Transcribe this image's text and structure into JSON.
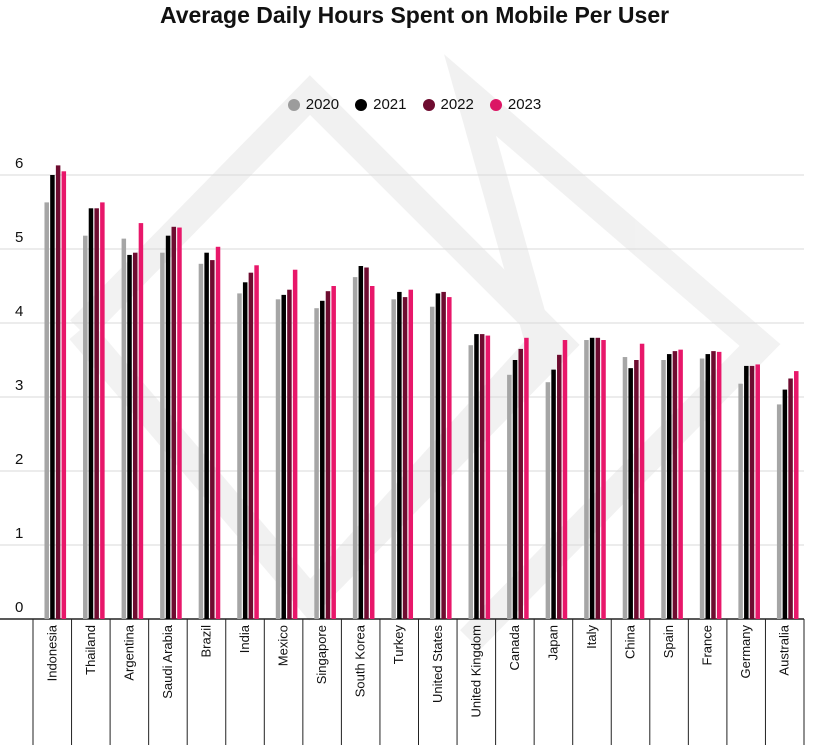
{
  "chart_data": {
    "type": "bar",
    "title": "Average Daily Hours Spent on Mobile Per User",
    "xlabel": "",
    "ylabel": "",
    "ylim": [
      0,
      6
    ],
    "yticks": [
      0,
      1,
      2,
      3,
      4,
      5,
      6
    ],
    "grid": true,
    "legend_position": "top-center",
    "categories": [
      "Indonesia",
      "Thailand",
      "Argentina",
      "Saudi Arabia",
      "Brazil",
      "India",
      "Mexico",
      "Singapore",
      "South Korea",
      "Turkey",
      "United States",
      "United Kingdom",
      "Canada",
      "Japan",
      "Italy",
      "China",
      "Spain",
      "France",
      "Germany",
      "Australia"
    ],
    "series": [
      {
        "name": "2020",
        "color": "#a6a6a6",
        "values": [
          5.63,
          5.18,
          5.14,
          4.95,
          4.8,
          4.4,
          4.32,
          4.2,
          4.62,
          4.32,
          4.22,
          3.7,
          3.3,
          3.2,
          3.77,
          3.54,
          3.5,
          3.52,
          3.18,
          2.9
        ]
      },
      {
        "name": "2021",
        "color": "#000000",
        "values": [
          6.0,
          5.55,
          4.92,
          5.18,
          4.95,
          4.55,
          4.38,
          4.3,
          4.77,
          4.42,
          4.4,
          3.85,
          3.5,
          3.37,
          3.8,
          3.39,
          3.58,
          3.58,
          3.42,
          3.1
        ]
      },
      {
        "name": "2022",
        "color": "#6e0c30",
        "values": [
          6.13,
          5.55,
          4.95,
          5.3,
          4.85,
          4.68,
          4.45,
          4.43,
          4.75,
          4.35,
          4.42,
          3.85,
          3.65,
          3.57,
          3.8,
          3.5,
          3.62,
          3.62,
          3.42,
          3.25
        ]
      },
      {
        "name": "2023",
        "color": "#e8176a",
        "values": [
          6.05,
          5.63,
          5.35,
          5.29,
          5.03,
          4.78,
          4.72,
          4.5,
          4.5,
          4.45,
          4.35,
          3.83,
          3.8,
          3.77,
          3.77,
          3.72,
          3.64,
          3.61,
          3.44,
          3.35
        ]
      }
    ]
  }
}
